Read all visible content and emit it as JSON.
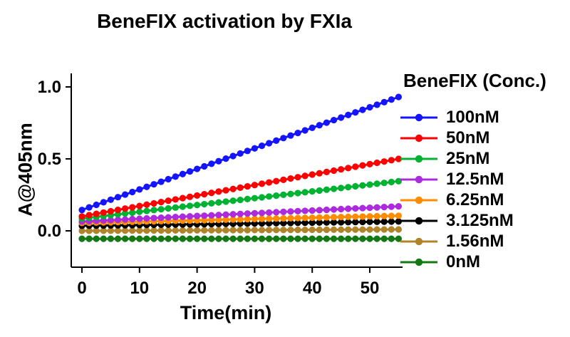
{
  "title": "BeneFIX activation by FXIa",
  "x_axis": {
    "label": "Time(min)",
    "tick_labels": [
      "0",
      "10",
      "20",
      "30",
      "40",
      "50"
    ],
    "tick_values": [
      0,
      10,
      20,
      30,
      40,
      50
    ]
  },
  "y_axis": {
    "label": "A@405nm",
    "tick_labels": [
      "0.0",
      "0.5",
      "1.0"
    ],
    "tick_values": [
      0,
      0.5,
      1
    ]
  },
  "legend": {
    "title": "BeneFIX (Conc.)",
    "items": [
      {
        "label": "100nM",
        "color": "#1414FF"
      },
      {
        "label": "50nM",
        "color": "#FF0000"
      },
      {
        "label": "25nM",
        "color": "#00B232"
      },
      {
        "label": "12.5nM",
        "color": "#AC2BDD"
      },
      {
        "label": "6.25nM",
        "color": "#FF8C00"
      },
      {
        "label": "3.125nM",
        "color": "#000000"
      },
      {
        "label": "1.56nM",
        "color": "#B0842A"
      },
      {
        "label": "0nM",
        "color": "#147814"
      }
    ]
  },
  "chart_data": {
    "type": "line",
    "title": "BeneFIX activation by FXIa",
    "xlabel": "Time(min)",
    "ylabel": "A@405nm",
    "xlim": [
      -2,
      56
    ],
    "ylim": [
      -0.25,
      1.1
    ],
    "grid": false,
    "legend_position": "right",
    "marker": "circle",
    "x_start": 0,
    "x_end": 55,
    "x_step": 1.25,
    "n_points": 45,
    "series": [
      {
        "name": "100nM",
        "color": "#1414FF",
        "shape": "linear",
        "y_start": 0.145,
        "y_end": 0.93
      },
      {
        "name": "50nM",
        "color": "#FF0000",
        "shape": "linear",
        "y_start": 0.1,
        "y_end": 0.5
      },
      {
        "name": "25nM",
        "color": "#00B232",
        "shape": "linear",
        "y_start": 0.085,
        "y_end": 0.345
      },
      {
        "name": "12.5nM",
        "color": "#AC2BDD",
        "shape": "linear",
        "y_start": 0.065,
        "y_end": 0.17
      },
      {
        "name": "6.25nM",
        "color": "#FF8C00",
        "shape": "linear",
        "y_start": 0.055,
        "y_end": 0.105
      },
      {
        "name": "3.125nM",
        "color": "#000000",
        "shape": "linear",
        "y_start": 0.035,
        "y_end": 0.065
      },
      {
        "name": "1.56nM",
        "color": "#B0842A",
        "shape": "linear",
        "y_start": 0.0,
        "y_end": 0.01
      },
      {
        "name": "0nM",
        "color": "#147814",
        "shape": "linear",
        "y_start": -0.055,
        "y_end": -0.055
      }
    ]
  }
}
